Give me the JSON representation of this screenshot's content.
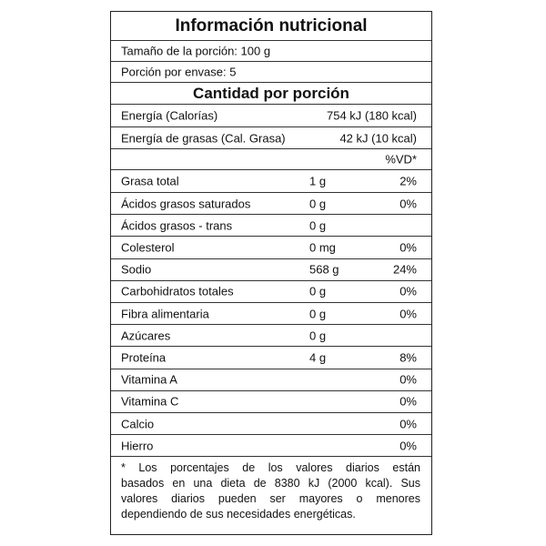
{
  "title": "Información nutricional",
  "serving_size": "Tamaño de la porción: 100 g",
  "servings_per_container": "Porción por envase: 5",
  "amount_per_serving": "Cantidad por porción",
  "energy": {
    "name": "Energía (Calorías)",
    "value": "754 kJ (180 kcal)"
  },
  "fat_energy": {
    "name": "Energía de grasas (Cal. Grasa)",
    "value": "42 kJ (10 kcal)"
  },
  "dv_header": "%VD*",
  "nutrients": [
    {
      "name": "Grasa total",
      "amount": "1 g",
      "dv": "2%"
    },
    {
      "name": "Ácidos grasos saturados",
      "amount": "0 g",
      "dv": "0%"
    },
    {
      "name": "Ácidos grasos - trans",
      "amount": "0 g"
    },
    {
      "name": "Colesterol",
      "amount": "0 mg",
      "dv": "0%"
    },
    {
      "name": "Sodio",
      "amount": "568 g",
      "dv": "24%"
    },
    {
      "name": "Carbohidratos totales",
      "amount": "0 g",
      "dv": "0%"
    },
    {
      "name": "Fibra alimentaria",
      "amount": "0 g",
      "dv": "0%"
    },
    {
      "name": "Azúcares",
      "amount": "0 g"
    },
    {
      "name": "Proteína",
      "amount": "4 g",
      "dv": "8%"
    },
    {
      "name": "Vitamina A",
      "dv": "0%"
    },
    {
      "name": "Vitamina C",
      "dv": "0%"
    },
    {
      "name": "Calcio",
      "dv": "0%"
    },
    {
      "name": "Hierro",
      "dv": "0%"
    }
  ],
  "footnote": [
    "* Los porcentajes de los valores diarios están",
    "basados en una dieta de 8380 kJ (2000 kcal). Sus",
    "valores diarios pueden ser mayores o menores",
    "dependiendo de sus necesidades energéticas."
  ]
}
